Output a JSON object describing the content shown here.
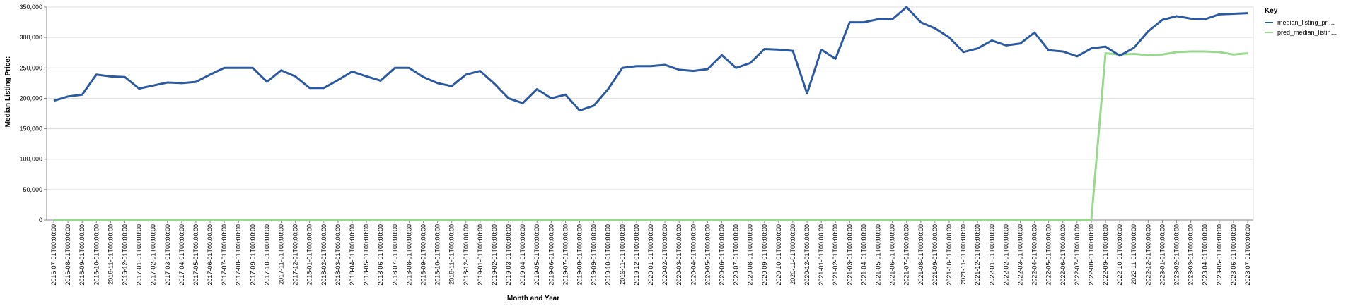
{
  "chart_data": {
    "type": "line",
    "x_label": "Month and Year",
    "y_label": "Median Listing Price:",
    "legend_title": "Key",
    "legend_position": "right",
    "grid": true,
    "categories": [
      "2016-07-01T00:00:00",
      "2016-08-01T00:00:00",
      "2016-09-01T00:00:00",
      "2016-10-01T00:00:00",
      "2016-11-01T00:00:00",
      "2016-12-01T00:00:00",
      "2017-01-01T00:00:00",
      "2017-02-01T00:00:00",
      "2017-03-01T00:00:00",
      "2017-04-01T00:00:00",
      "2017-05-01T00:00:00",
      "2017-06-01T00:00:00",
      "2017-07-01T00:00:00",
      "2017-08-01T00:00:00",
      "2017-09-01T00:00:00",
      "2017-10-01T00:00:00",
      "2017-11-01T00:00:00",
      "2017-12-01T00:00:00",
      "2018-01-01T00:00:00",
      "2018-02-01T00:00:00",
      "2018-03-01T00:00:00",
      "2018-04-01T00:00:00",
      "2018-05-01T00:00:00",
      "2018-06-01T00:00:00",
      "2018-07-01T00:00:00",
      "2018-08-01T00:00:00",
      "2018-09-01T00:00:00",
      "2018-10-01T00:00:00",
      "2018-11-01T00:00:00",
      "2018-12-01T00:00:00",
      "2019-01-01T00:00:00",
      "2019-02-01T00:00:00",
      "2019-03-01T00:00:00",
      "2019-04-01T00:00:00",
      "2019-05-01T00:00:00",
      "2019-06-01T00:00:00",
      "2019-07-01T00:00:00",
      "2019-08-01T00:00:00",
      "2019-09-01T00:00:00",
      "2019-10-01T00:00:00",
      "2019-11-01T00:00:00",
      "2019-12-01T00:00:00",
      "2020-01-01T00:00:00",
      "2020-02-01T00:00:00",
      "2020-03-01T00:00:00",
      "2020-04-01T00:00:00",
      "2020-05-01T00:00:00",
      "2020-06-01T00:00:00",
      "2020-07-01T00:00:00",
      "2020-08-01T00:00:00",
      "2020-09-01T00:00:00",
      "2020-10-01T00:00:00",
      "2020-11-01T00:00:00",
      "2020-12-01T00:00:00",
      "2021-01-01T00:00:00",
      "2021-02-01T00:00:00",
      "2021-03-01T00:00:00",
      "2021-04-01T00:00:00",
      "2021-05-01T00:00:00",
      "2021-06-01T00:00:00",
      "2021-07-01T00:00:00",
      "2021-08-01T00:00:00",
      "2021-09-01T00:00:00",
      "2021-10-01T00:00:00",
      "2021-11-01T00:00:00",
      "2021-12-01T00:00:00",
      "2022-01-01T00:00:00",
      "2022-02-01T00:00:00",
      "2022-03-01T00:00:00",
      "2022-04-01T00:00:00",
      "2022-05-01T00:00:00",
      "2022-06-01T00:00:00",
      "2022-07-01T00:00:00",
      "2022-08-01T00:00:00",
      "2022-09-01T00:00:00",
      "2022-10-01T00:00:00",
      "2022-11-01T00:00:00",
      "2022-12-01T00:00:00",
      "2023-01-01T00:00:00",
      "2023-02-01T00:00:00",
      "2023-03-01T00:00:00",
      "2023-04-01T00:00:00",
      "2023-05-01T00:00:00",
      "2023-06-01T00:00:00",
      "2023-07-01T00:00:00"
    ],
    "series": [
      {
        "name": "median_listing_pri…",
        "color": "#2c5aa0",
        "values": [
          196000,
          203000,
          206000,
          239000,
          236000,
          235000,
          216000,
          221000,
          226000,
          225000,
          227000,
          239000,
          250000,
          250000,
          250000,
          227000,
          246000,
          236000,
          217000,
          217000,
          230000,
          244000,
          236000,
          229000,
          250000,
          250000,
          235000,
          225000,
          220000,
          239000,
          245000,
          224000,
          200000,
          192000,
          215000,
          200000,
          206000,
          180000,
          188000,
          215000,
          250000,
          253000,
          253000,
          255000,
          247000,
          245000,
          248000,
          271000,
          250000,
          258000,
          281000,
          280000,
          278000,
          208000,
          280000,
          265000,
          325000,
          325000,
          330000,
          330000,
          350000,
          325000,
          315000,
          300000,
          276000,
          282000,
          295000,
          287000,
          290000,
          308000,
          279000,
          277000,
          269000,
          282000,
          285000,
          270000,
          283000,
          310000,
          329000,
          335000,
          331000,
          330000,
          338000,
          339000,
          340000
        ]
      },
      {
        "name": "pred_median_listin…",
        "color": "#98d98e",
        "values": [
          0,
          0,
          0,
          0,
          0,
          0,
          0,
          0,
          0,
          0,
          0,
          0,
          0,
          0,
          0,
          0,
          0,
          0,
          0,
          0,
          0,
          0,
          0,
          0,
          0,
          0,
          0,
          0,
          0,
          0,
          0,
          0,
          0,
          0,
          0,
          0,
          0,
          0,
          0,
          0,
          0,
          0,
          0,
          0,
          0,
          0,
          0,
          0,
          0,
          0,
          0,
          0,
          0,
          0,
          0,
          0,
          0,
          0,
          0,
          0,
          0,
          0,
          0,
          0,
          0,
          0,
          0,
          0,
          0,
          0,
          0,
          0,
          0,
          0,
          274000,
          272000,
          273000,
          271000,
          272000,
          276000,
          277000,
          277000,
          276000,
          272000,
          274000
        ]
      }
    ],
    "ylim": [
      0,
      350000
    ],
    "yticks": [
      0,
      {
        "value": 50000,
        "label": "50,000"
      },
      {
        "value": 100000,
        "label": "100,000"
      },
      {
        "value": 150000,
        "label": "150,000"
      },
      {
        "value": 200000,
        "label": "200,000"
      },
      {
        "value": 250000,
        "label": "250,000"
      },
      {
        "value": 300000,
        "label": "300,000"
      },
      {
        "value": 350000,
        "label": "350,000"
      }
    ]
  }
}
